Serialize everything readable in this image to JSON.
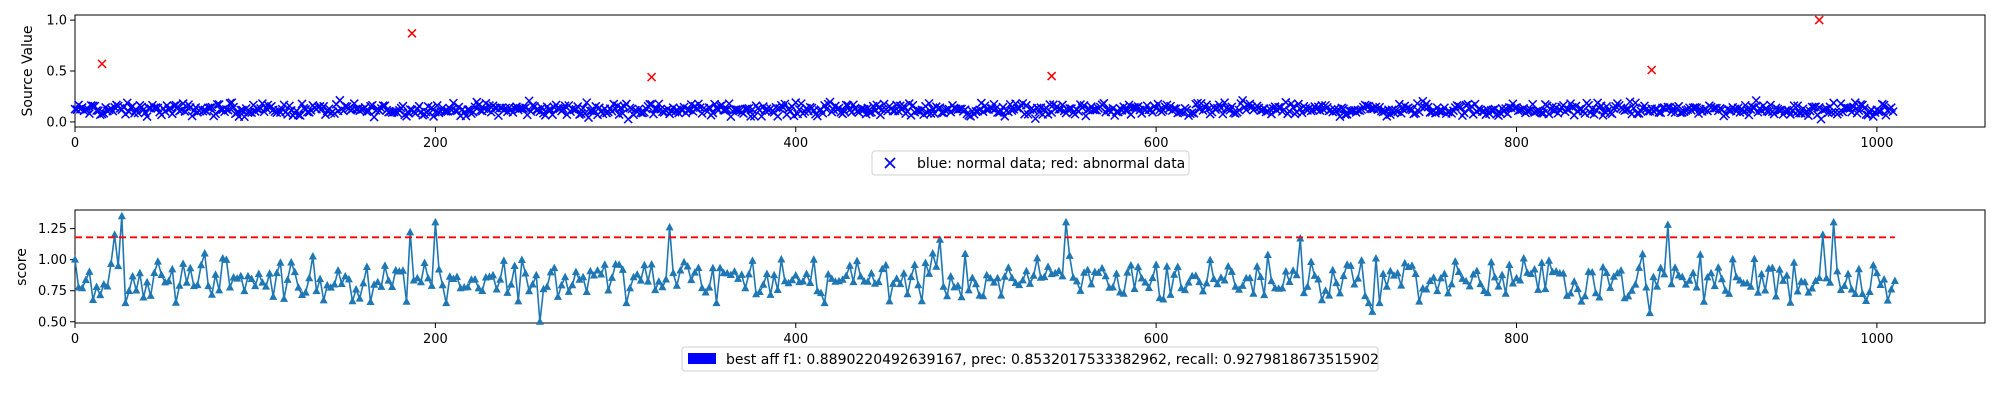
{
  "chart_data": [
    {
      "type": "scatter",
      "ylabel": "Source Value",
      "xlim": [
        0,
        1060
      ],
      "ylim": [
        -0.05,
        1.05
      ],
      "xticks": [
        0,
        200,
        400,
        600,
        800,
        1000
      ],
      "yticks": [
        0.0,
        0.5,
        1.0
      ],
      "xtick_labels": [
        "0",
        "200",
        "400",
        "600",
        "800",
        "1000"
      ],
      "ytick_labels": [
        "0.0",
        "0.5",
        "1.0"
      ],
      "legend": {
        "label": "blue: normal data; red: abnormal data",
        "placement": "bottom-center",
        "marker": "x",
        "color": "#0000ff"
      },
      "normal": {
        "color": "#0000ff",
        "marker": "x",
        "x_range": [
          0,
          1010
        ],
        "typical_y": [
          0.02,
          0.22
        ],
        "center_y": 0.12,
        "points_shown": 1010
      },
      "abnormal": {
        "color": "#ff0000",
        "marker": "x",
        "x": [
          15,
          187,
          320,
          542,
          875,
          968
        ],
        "y": [
          0.57,
          0.87,
          0.44,
          0.45,
          0.51,
          1.0
        ]
      }
    },
    {
      "type": "line",
      "ylabel": "score",
      "xlim": [
        0,
        1060
      ],
      "ylim": [
        0.49,
        1.4
      ],
      "xticks": [
        0,
        200,
        400,
        600,
        800,
        1000
      ],
      "yticks": [
        0.5,
        0.75,
        1.0,
        1.25
      ],
      "xtick_labels": [
        "0",
        "200",
        "400",
        "600",
        "800",
        "1000"
      ],
      "ytick_labels": [
        "0.50",
        "0.75",
        "1.00",
        "1.25"
      ],
      "threshold": {
        "y": 1.18,
        "color": "#ff0000",
        "style": "dashed"
      },
      "series": {
        "color": "#1f77b4",
        "marker": "triangle-up",
        "x_range": [
          0,
          1010
        ],
        "typical_y": [
          0.65,
          1.0
        ],
        "spikes": [
          {
            "x": 22,
            "y": 1.2
          },
          {
            "x": 27,
            "y": 1.35
          },
          {
            "x": 187,
            "y": 1.22
          },
          {
            "x": 200,
            "y": 1.3
          },
          {
            "x": 258,
            "y": 0.5
          },
          {
            "x": 330,
            "y": 1.26
          },
          {
            "x": 480,
            "y": 1.16
          },
          {
            "x": 550,
            "y": 1.3
          },
          {
            "x": 680,
            "y": 1.17
          },
          {
            "x": 720,
            "y": 0.58
          },
          {
            "x": 875,
            "y": 0.57
          },
          {
            "x": 885,
            "y": 1.28
          },
          {
            "x": 970,
            "y": 1.2
          },
          {
            "x": 977,
            "y": 1.3
          }
        ]
      },
      "legend": {
        "label": "best aff f1: 0.8890220492639167, prec: 0.8532017533382962, recall: 0.9279818673515902",
        "placement": "bottom-center",
        "color": "#0000ff"
      }
    }
  ]
}
